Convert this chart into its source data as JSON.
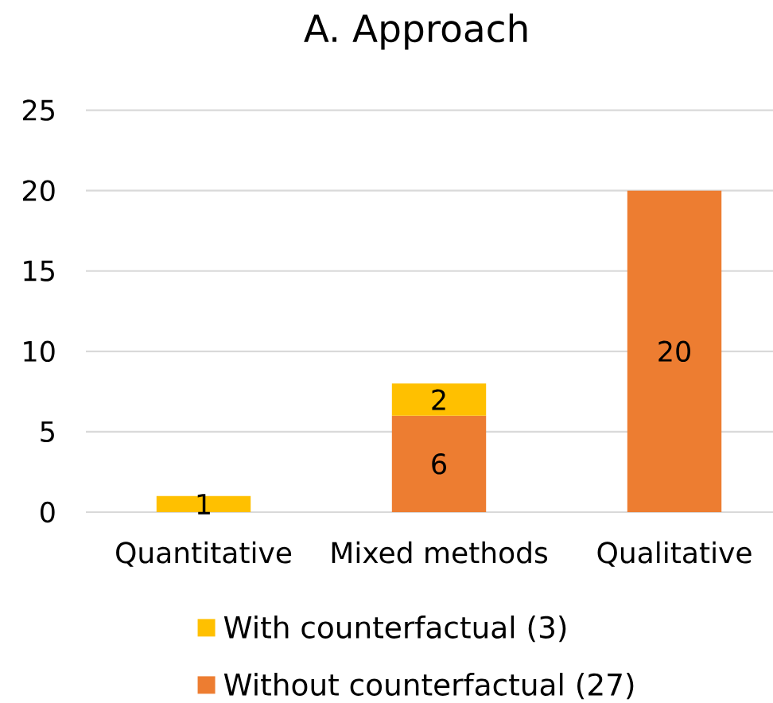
{
  "chart_data": {
    "type": "bar",
    "title": "A. Approach",
    "categories": [
      "Quantitative",
      "Mixed methods",
      "Qualitative"
    ],
    "stacked": true,
    "series": [
      {
        "name": "Without counterfactual (27)",
        "color": "#ed7d31",
        "values": [
          null,
          6,
          20
        ]
      },
      {
        "name": "With counterfactual (3)",
        "color": "#ffc000",
        "values": [
          1,
          2,
          null
        ]
      }
    ],
    "ylim": [
      0,
      25
    ],
    "yticks": [
      0,
      5,
      10,
      15,
      20,
      25
    ],
    "grid": "y",
    "legend": "bottom",
    "data_labels": true
  }
}
